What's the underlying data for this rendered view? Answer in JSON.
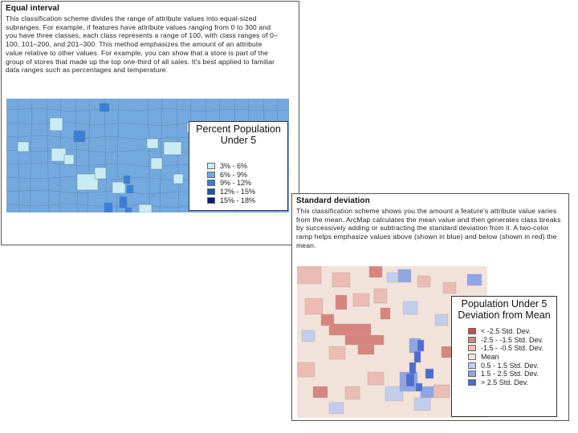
{
  "equal_interval": {
    "title": "Equal interval",
    "description": "This classification scheme divides the range of attribute values into equal-sized subranges. For example, if features have attribute values ranging from 0 to 300 and you have three classes, each class represents a range of 100, with class ranges of 0–100, 101–200, and 201–300. This method emphasizes the amount of an attribute value relative to other values. For example, you can show that a store is part of the group of stores that made up the top one-third of all sales. It's best applied to familiar data ranges such as percentages and temperature.",
    "legend": {
      "title": "Percent Population Under 5",
      "items": [
        {
          "label": "3% - 6%",
          "color": "#c9ecf2"
        },
        {
          "label": "6% - 9%",
          "color": "#74a9de"
        },
        {
          "label": "9% - 12%",
          "color": "#3a7fd5"
        },
        {
          "label": "12% - 15%",
          "color": "#2051b0"
        },
        {
          "label": "15% - 18%",
          "color": "#0a1e7c"
        }
      ]
    }
  },
  "standard_deviation": {
    "title": "Standard deviation",
    "description": "This classification scheme shows you the amount a feature's attribute value varies from the mean. ArcMap calculates the mean value and then generates class breaks by successively adding or subtracting the standard deviation from it. A two-color ramp helps emphasize values above (shown in blue) and below (shown in red) the mean.",
    "legend": {
      "title": "Population Under 5 Deviation from Mean",
      "items": [
        {
          "label": "< -2.5 Std. Dev.",
          "color": "#c0504d"
        },
        {
          "label": "-2.5 - -1.5 Std. Dev.",
          "color": "#d8847e"
        },
        {
          "label": "-1.5 - -0.5 Std. Dev.",
          "color": "#ebbcb4"
        },
        {
          "label": "Mean",
          "color": "#f1e3da"
        },
        {
          "label": "0.5 - 1.5 Std. Dev.",
          "color": "#c2cdee"
        },
        {
          "label": "1.5 - 2.5 Std. Dev.",
          "color": "#8ea5e6"
        },
        {
          "label": "> 2.5 Std. Dev.",
          "color": "#4a6ed4"
        }
      ]
    }
  }
}
